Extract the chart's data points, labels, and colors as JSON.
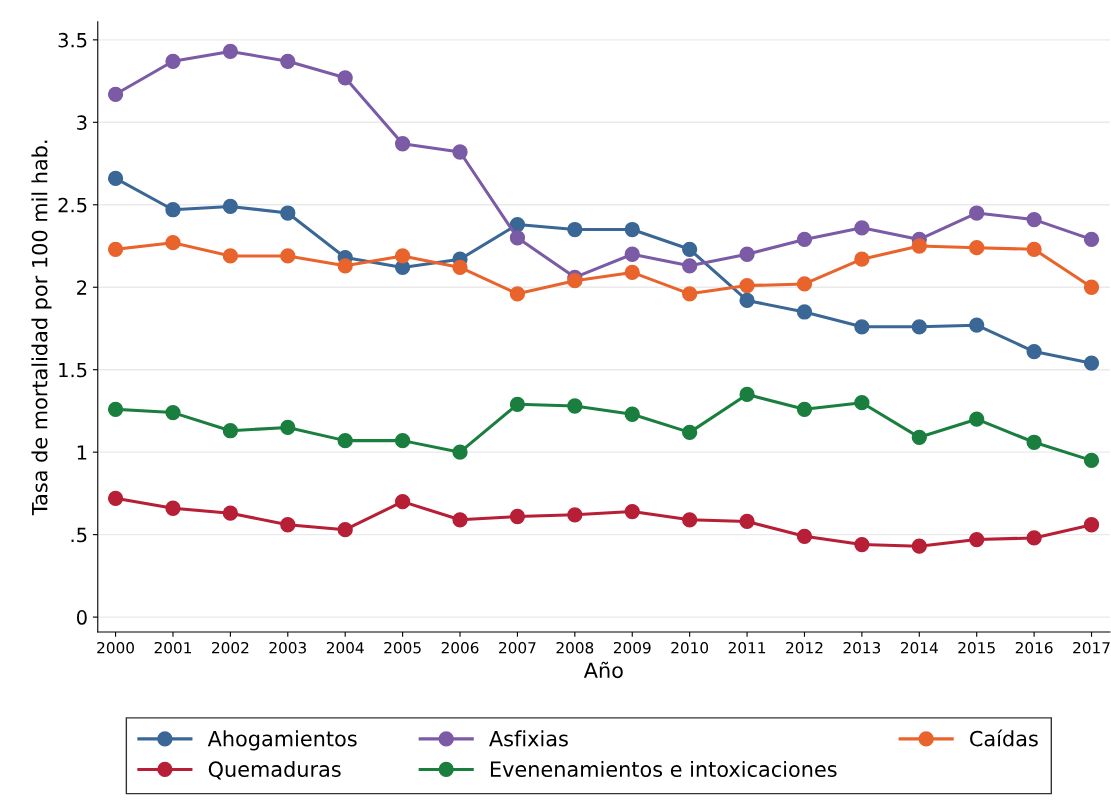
{
  "chart_data": {
    "type": "line",
    "xlabel": "Año",
    "ylabel": "Tasa de mortalidad por 100 mil hab.",
    "x": [
      2000,
      2001,
      2002,
      2003,
      2004,
      2005,
      2006,
      2007,
      2008,
      2009,
      2010,
      2011,
      2012,
      2013,
      2014,
      2015,
      2016,
      2017
    ],
    "series": [
      {
        "name": "Ahogamientos",
        "color": "#3a6796",
        "values": [
          2.66,
          2.47,
          2.49,
          2.45,
          2.18,
          2.12,
          2.17,
          2.38,
          2.35,
          2.35,
          2.23,
          1.92,
          1.85,
          1.76,
          1.76,
          1.77,
          1.61,
          1.54
        ]
      },
      {
        "name": "Asfixias",
        "color": "#7b5aa6",
        "values": [
          3.17,
          3.37,
          3.43,
          3.37,
          3.27,
          2.87,
          2.82,
          2.3,
          2.06,
          2.2,
          2.13,
          2.2,
          2.29,
          2.36,
          2.29,
          2.45,
          2.41,
          2.29
        ]
      },
      {
        "name": "Caídas",
        "color": "#e8642c",
        "values": [
          2.23,
          2.27,
          2.19,
          2.19,
          2.13,
          2.19,
          2.12,
          1.96,
          2.04,
          2.09,
          1.96,
          2.01,
          2.02,
          2.17,
          2.25,
          2.24,
          2.23,
          2.0
        ]
      },
      {
        "name": "Quemaduras",
        "color": "#b71f36",
        "values": [
          0.72,
          0.66,
          0.63,
          0.56,
          0.53,
          0.7,
          0.59,
          0.61,
          0.62,
          0.64,
          0.59,
          0.58,
          0.49,
          0.44,
          0.43,
          0.47,
          0.48,
          0.56
        ]
      },
      {
        "name": "Evenenamientos e intoxicaciones",
        "color": "#1a7f3e",
        "values": [
          1.26,
          1.24,
          1.13,
          1.15,
          1.07,
          1.07,
          1.0,
          1.29,
          1.28,
          1.23,
          1.12,
          1.35,
          1.26,
          1.3,
          1.09,
          1.2,
          1.06,
          0.95
        ]
      }
    ],
    "xlim": [
      1999.69,
      2017.32
    ],
    "xticks": [
      2000,
      2001,
      2002,
      2003,
      2004,
      2005,
      2006,
      2007,
      2008,
      2009,
      2010,
      2011,
      2012,
      2013,
      2014,
      2015,
      2016,
      2017
    ],
    "ylim": [
      -0.09,
      3.61
    ],
    "yticks": [
      0,
      {
        "value": 0.5,
        "label": ".5"
      },
      1,
      1.5,
      2,
      2.5,
      3,
      3.5
    ],
    "grid": "y",
    "legend": "bottom",
    "marker": "circle",
    "line_style": "solid"
  }
}
